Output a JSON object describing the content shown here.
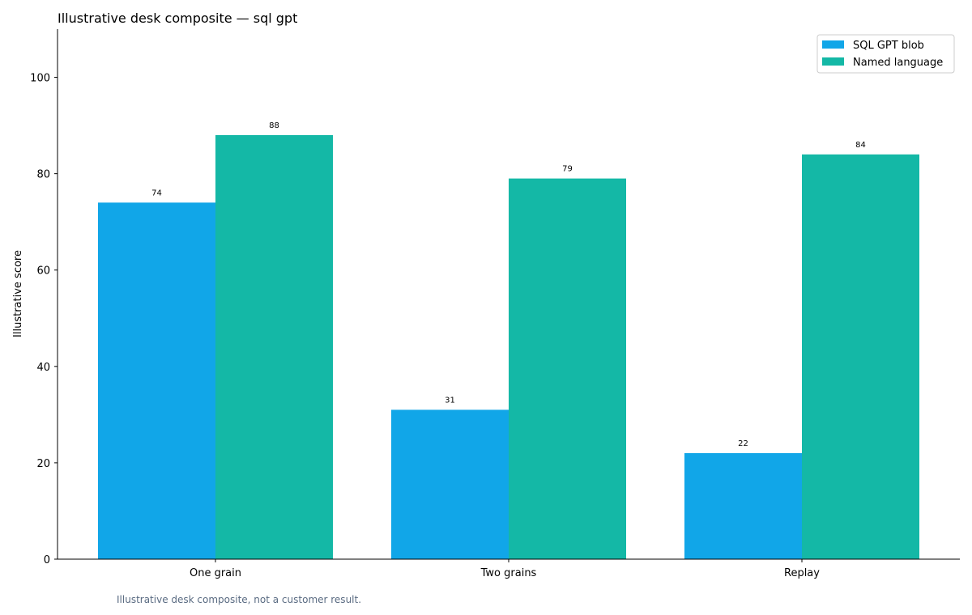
{
  "chart_data": {
    "type": "bar",
    "title": "Illustrative desk composite — sql gpt",
    "xlabel": "",
    "ylabel": "Illustrative score",
    "categories": [
      "One grain",
      "Two grains",
      "Replay"
    ],
    "series": [
      {
        "name": "SQL GPT blob",
        "values": [
          74,
          31,
          22
        ],
        "color": "#11a6e8"
      },
      {
        "name": "Named language",
        "values": [
          88,
          79,
          84
        ],
        "color": "#14b8a6"
      }
    ],
    "ylim": [
      0,
      110
    ],
    "yticks": [
      0,
      20,
      40,
      60,
      80,
      100
    ],
    "grid": false,
    "legend": "top-right",
    "footnote": "Illustrative desk composite, not a customer result."
  }
}
